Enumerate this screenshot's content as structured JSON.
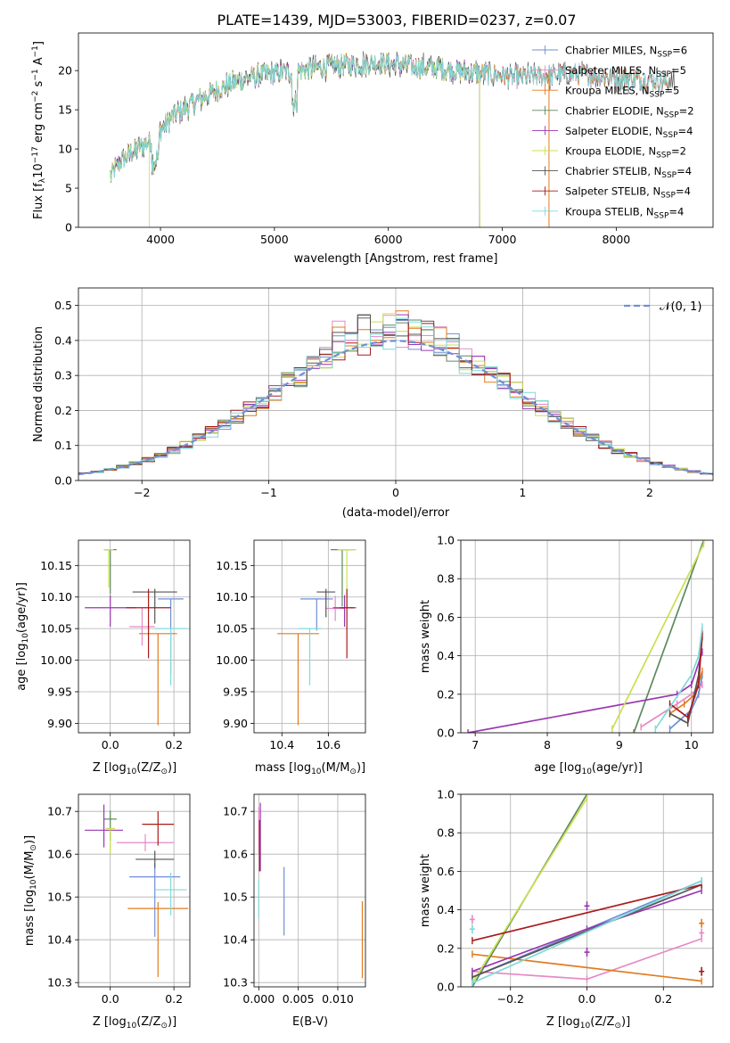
{
  "figure_title": "PLATE=1439, MJD=53003, FIBERID=0237, z=0.07",
  "colors": {
    "Chabrier MILES": "#6f8fd6",
    "Salpeter MILES": "#e58ac4",
    "Kroupa MILES": "#e07b1e",
    "Chabrier ELODIE": "#5c8a5c",
    "Salpeter ELODIE": "#9a36b0",
    "Kroupa ELODIE": "#c9e050",
    "Chabrier STELIB": "#555555",
    "Salpeter STELIB": "#aa1a1a",
    "Kroupa STELIB": "#7fdada"
  },
  "chart_data": [
    {
      "id": "spectrum",
      "type": "line",
      "xlabel": "wavelength [Angstrom, rest frame]",
      "ylabel": "Flux [f",
      "ylabel_sub": "λ",
      "ylabel_rest": "10",
      "ylabel_exp": "−17",
      "ylabel_tail": " erg cm",
      "ylabel_exp2": "−2",
      "ylabel_tail2": " s",
      "ylabel_exp3": "−1",
      "ylabel_tail3": " A",
      "ylabel_exp4": "−1",
      "ylabel_end": "]",
      "xlim": [
        3280,
        8850
      ],
      "ylim": [
        0,
        24.8
      ],
      "xticks": [
        4000,
        5000,
        6000,
        7000,
        8000
      ],
      "yticks": [
        0,
        5,
        10,
        15,
        20
      ],
      "legend": [
        {
          "label": "Chabrier MILES, N",
          "sub": "SSP",
          "tail": "=6"
        },
        {
          "label": "Salpeter MILES, N",
          "sub": "SSP",
          "tail": "=5"
        },
        {
          "label": "Kroupa MILES, N",
          "sub": "SSP",
          "tail": "=5"
        },
        {
          "label": "Chabrier ELODIE, N",
          "sub": "SSP",
          "tail": "=2"
        },
        {
          "label": "Salpeter ELODIE, N",
          "sub": "SSP",
          "tail": "=4"
        },
        {
          "label": "Kroupa ELODIE, N",
          "sub": "SSP",
          "tail": "=2"
        },
        {
          "label": "Chabrier STELIB, N",
          "sub": "SSP",
          "tail": "=4"
        },
        {
          "label": "Salpeter STELIB, N",
          "sub": "SSP",
          "tail": "=4"
        },
        {
          "label": "Kroupa STELIB, N",
          "sub": "SSP",
          "tail": "=4"
        }
      ],
      "continuum_anchors": {
        "x": [
          3560,
          3650,
          3800,
          3950,
          4100,
          4300,
          4500,
          4700,
          4900,
          5100,
          5300,
          5500,
          5700,
          5900,
          6100,
          6300,
          6500,
          6700,
          6900,
          7100,
          7300,
          7500,
          7700,
          7900,
          8100,
          8300,
          8500
        ],
        "y": [
          6.5,
          8.5,
          10.0,
          11.5,
          14.0,
          16.0,
          17.5,
          18.8,
          19.5,
          19.8,
          20.2,
          20.6,
          20.8,
          21.0,
          20.8,
          20.4,
          20.2,
          19.8,
          19.5,
          19.2,
          19.2,
          19.5,
          19.6,
          19.3,
          19.0,
          18.8,
          18.5
        ]
      }
    },
    {
      "id": "residuals",
      "type": "histogram",
      "xlabel": "(data-model)/error",
      "ylabel": "Normed distribution",
      "xlim": [
        -2.5,
        2.5
      ],
      "ylim": [
        0,
        0.55
      ],
      "xticks": [
        -2,
        -1,
        0,
        1,
        2
      ],
      "yticks": [
        0.0,
        0.1,
        0.2,
        0.3,
        0.4,
        0.5
      ],
      "legend": "𝒩(0, 1)"
    },
    {
      "id": "age-vs-metallicity",
      "type": "errorbar",
      "xlabel": "Z [log",
      "xlabel_sub": "10",
      "xlabel_mid": "(Z/Z",
      "xlabel_sub2": "⊙",
      "xlabel_end": ")]",
      "ylabel": "age  [log",
      "ylabel_sub": "10",
      "ylabel_end": "(age/yr)]",
      "xlim": [
        -0.1,
        0.25
      ],
      "ylim": [
        9.885,
        10.19
      ],
      "xticks": [
        0.0,
        0.2
      ],
      "yticks": [
        9.9,
        9.95,
        10.0,
        10.05,
        10.1,
        10.15
      ],
      "points": [
        {
          "x": 0.19,
          "y": 10.097,
          "xerr": 0.04,
          "yerr": [
            0.12,
            0.0
          ],
          "series": "Chabrier MILES"
        },
        {
          "x": 0.1,
          "y": 10.053,
          "xerr": 0.04,
          "yerr": [
            0.03,
            0.03
          ],
          "series": "Salpeter MILES"
        },
        {
          "x": 0.15,
          "y": 10.042,
          "xerr": 0.06,
          "yerr": [
            0.145,
            0.0
          ],
          "series": "Kroupa MILES"
        },
        {
          "x": 0.0,
          "y": 10.175,
          "xerr": 0.02,
          "yerr": [
            0.07,
            0.0
          ],
          "series": "Chabrier ELODIE"
        },
        {
          "x": 0.0,
          "y": 10.083,
          "xerr": 0.08,
          "yerr": [
            0.03,
            0.02
          ],
          "series": "Salpeter ELODIE"
        },
        {
          "x": -0.005,
          "y": 10.175,
          "xerr": 0.015,
          "yerr": [
            0.06,
            0.0
          ],
          "series": "Kroupa ELODIE"
        },
        {
          "x": 0.14,
          "y": 10.108,
          "xerr": 0.07,
          "yerr": [
            0.05,
            0.005
          ],
          "series": "Chabrier STELIB"
        },
        {
          "x": 0.12,
          "y": 10.083,
          "xerr": 0.07,
          "yerr": [
            0.08,
            0.03
          ],
          "series": "Salpeter STELIB"
        },
        {
          "x": 0.19,
          "y": 10.05,
          "xerr": 0.05,
          "yerr": [
            0.09,
            0.0
          ],
          "series": "Kroupa STELIB"
        }
      ]
    },
    {
      "id": "age-vs-mass",
      "type": "errorbar",
      "xlabel": "mass [log",
      "xlabel_sub": "10",
      "xlabel_end": "(M/M",
      "xlabel_sub2": "⊙",
      "xlabel_end2": ")]",
      "xlim": [
        10.28,
        10.76
      ],
      "ylim": [
        9.885,
        10.19
      ],
      "xticks": [
        10.4,
        10.6
      ],
      "yticks": [
        9.9,
        9.95,
        10.0,
        10.05,
        10.1,
        10.15
      ],
      "points": [
        {
          "x": 10.55,
          "y": 10.097,
          "xerr": 0.07,
          "yerr": [
            0.05,
            0.0
          ],
          "series": "Chabrier MILES"
        },
        {
          "x": 10.63,
          "y": 10.082,
          "xerr": 0.04,
          "yerr": [
            0.02,
            0.02
          ],
          "series": "Salpeter MILES"
        },
        {
          "x": 10.47,
          "y": 10.042,
          "xerr": 0.09,
          "yerr": [
            0.145,
            0.0
          ],
          "series": "Kroupa MILES"
        },
        {
          "x": 10.66,
          "y": 10.175,
          "xerr": 0.05,
          "yerr": [
            0.09,
            0.0
          ],
          "series": "Chabrier ELODIE"
        },
        {
          "x": 10.67,
          "y": 10.083,
          "xerr": 0.05,
          "yerr": [
            0.03,
            0.02
          ],
          "series": "Salpeter ELODIE"
        },
        {
          "x": 10.68,
          "y": 10.175,
          "xerr": 0.04,
          "yerr": [
            0.09,
            0.0
          ],
          "series": "Kroupa ELODIE"
        },
        {
          "x": 10.59,
          "y": 10.108,
          "xerr": 0.04,
          "yerr": [
            0.04,
            0.005
          ],
          "series": "Chabrier STELIB"
        },
        {
          "x": 10.68,
          "y": 10.083,
          "xerr": 0.03,
          "yerr": [
            0.08,
            0.03
          ],
          "series": "Salpeter STELIB"
        },
        {
          "x": 10.52,
          "y": 10.05,
          "xerr": 0.05,
          "yerr": [
            0.09,
            0.0
          ],
          "series": "Kroupa STELIB"
        }
      ]
    },
    {
      "id": "weight-vs-age",
      "type": "line",
      "xlabel": "age  [log",
      "xlabel_sub": "10",
      "xlabel_end": "(age/yr)]",
      "ylabel": "mass weight",
      "xlim": [
        6.8,
        10.3
      ],
      "ylim": [
        0,
        1
      ],
      "xticks": [
        7,
        8,
        9,
        10
      ],
      "yticks": [
        0.0,
        0.2,
        0.4,
        0.6,
        0.8,
        1.0
      ],
      "series": [
        {
          "name": "Chabrier MILES",
          "x": [
            9.7,
            10.0,
            10.1,
            10.15
          ],
          "y": [
            0.02,
            0.12,
            0.2,
            0.3
          ]
        },
        {
          "name": "Salpeter MILES",
          "x": [
            9.3,
            9.8,
            10.0,
            10.15
          ],
          "y": [
            0.03,
            0.15,
            0.2,
            0.25
          ]
        },
        {
          "name": "Kroupa MILES",
          "x": [
            9.7,
            9.9,
            10.05,
            10.15
          ],
          "y": [
            0.1,
            0.15,
            0.2,
            0.32
          ]
        },
        {
          "name": "Chabrier ELODIE",
          "x": [
            9.2,
            10.17
          ],
          "y": [
            0.0,
            1.0
          ]
        },
        {
          "name": "Salpeter ELODIE",
          "x": [
            6.9,
            9.8,
            10.0,
            10.15
          ],
          "y": [
            0.0,
            0.2,
            0.25,
            0.42
          ]
        },
        {
          "name": "Kroupa ELODIE",
          "x": [
            8.9,
            10.17
          ],
          "y": [
            0.02,
            0.98
          ]
        },
        {
          "name": "Chabrier STELIB",
          "x": [
            9.7,
            9.95,
            10.1,
            10.15
          ],
          "y": [
            0.1,
            0.05,
            0.3,
            0.5
          ]
        },
        {
          "name": "Salpeter STELIB",
          "x": [
            9.7,
            9.95,
            10.1,
            10.15
          ],
          "y": [
            0.15,
            0.08,
            0.25,
            0.52
          ]
        },
        {
          "name": "Kroupa STELIB",
          "x": [
            9.5,
            10.0,
            10.1,
            10.15
          ],
          "y": [
            0.02,
            0.3,
            0.4,
            0.55
          ]
        }
      ]
    },
    {
      "id": "mass-vs-metallicity",
      "type": "errorbar",
      "xlabel": "Z [log",
      "xlabel_sub": "10",
      "xlabel_mid": "(Z/Z",
      "xlabel_sub2": "⊙",
      "xlabel_end": ")]",
      "ylabel": "mass [log",
      "ylabel_sub": "10",
      "ylabel_end": "(M/M",
      "ylabel_sub2": "⊙",
      "ylabel_end2": ")]",
      "xlim": [
        -0.1,
        0.25
      ],
      "ylim": [
        10.29,
        10.74
      ],
      "xticks": [
        0.0,
        0.2
      ],
      "yticks": [
        10.3,
        10.4,
        10.5,
        10.6,
        10.7
      ],
      "points": [
        {
          "x": 0.14,
          "y": 10.547,
          "xerr": 0.08,
          "yerr": [
            0.14,
            0.03
          ],
          "series": "Chabrier MILES"
        },
        {
          "x": 0.11,
          "y": 10.627,
          "xerr": 0.09,
          "yerr": [
            0.02,
            0.02
          ],
          "series": "Salpeter MILES"
        },
        {
          "x": 0.15,
          "y": 10.473,
          "xerr": 0.095,
          "yerr": [
            0.16,
            0.015
          ],
          "series": "Kroupa MILES"
        },
        {
          "x": 0.0,
          "y": 10.682,
          "xerr": 0.02,
          "yerr": [
            0.05,
            0.02
          ],
          "series": "Chabrier ELODIE"
        },
        {
          "x": -0.02,
          "y": 10.656,
          "xerr": 0.06,
          "yerr": [
            0.04,
            0.06
          ],
          "series": "Salpeter ELODIE"
        },
        {
          "x": 0.0,
          "y": 10.66,
          "xerr": 0.015,
          "yerr": [
            0.06,
            0.0
          ],
          "series": "Kroupa ELODIE"
        },
        {
          "x": 0.14,
          "y": 10.588,
          "xerr": 0.06,
          "yerr": [
            0.02,
            0.02
          ],
          "series": "Chabrier STELIB"
        },
        {
          "x": 0.15,
          "y": 10.67,
          "xerr": 0.05,
          "yerr": [
            0.05,
            0.03
          ],
          "series": "Salpeter STELIB"
        },
        {
          "x": 0.19,
          "y": 10.517,
          "xerr": 0.05,
          "yerr": [
            0.06,
            0.04
          ],
          "series": "Kroupa STELIB"
        }
      ]
    },
    {
      "id": "mass-vs-extinction",
      "type": "errorbar",
      "xlabel": "E(B-V)",
      "xlim": [
        -0.0006,
        0.0135
      ],
      "ylim": [
        10.29,
        10.74
      ],
      "xticks": [
        0.0,
        0.005,
        0.01
      ],
      "xtick_labels": [
        "0.000",
        "0.005",
        "0.010"
      ],
      "yticks": [
        10.3,
        10.4,
        10.5,
        10.6,
        10.7
      ],
      "points": [
        {
          "x": 0.0032,
          "y": 10.49,
          "yerr": [
            0.08,
            0.08
          ],
          "series": "Chabrier MILES"
        },
        {
          "x": 0.0,
          "y": 10.65,
          "yerr": [
            0.05,
            0.06
          ],
          "series": "Salpeter MILES"
        },
        {
          "x": 0.0131,
          "y": 10.4,
          "yerr": [
            0.09,
            0.09
          ],
          "series": "Kroupa MILES"
        },
        {
          "x": 0.0002,
          "y": 10.64,
          "yerr": [
            0.08,
            0.08
          ],
          "series": "Salpeter ELODIE"
        },
        {
          "x": 0.0001,
          "y": 10.62,
          "yerr": [
            0.06,
            0.06
          ],
          "series": "Salpeter STELIB"
        },
        {
          "x": 0.0,
          "y": 10.49,
          "yerr": [
            0.04,
            0.05
          ],
          "series": "Kroupa STELIB"
        }
      ]
    },
    {
      "id": "weight-vs-metallicity",
      "type": "line",
      "xlabel": "Z [log",
      "xlabel_sub": "10",
      "xlabel_mid": "(Z/Z",
      "xlabel_sub2": "⊙",
      "xlabel_end": ")]",
      "ylabel": "mass weight",
      "xlim": [
        -0.33,
        0.33
      ],
      "ylim": [
        0,
        1
      ],
      "xticks": [
        -0.2,
        0.0,
        0.2
      ],
      "xtick_labels": [
        "−0.2",
        "0.0",
        "0.2"
      ],
      "yticks": [
        0.0,
        0.2,
        0.4,
        0.6,
        0.8,
        1.0
      ],
      "series": [
        {
          "name": "Chabrier MILES",
          "x": [
            -0.3,
            0.3
          ],
          "y": [
            0.05,
            0.55
          ]
        },
        {
          "name": "Salpeter MILES",
          "x": [
            -0.3,
            0.0,
            0.3
          ],
          "y": [
            0.08,
            0.04,
            0.25
          ]
        },
        {
          "name": "Kroupa MILES",
          "x": [
            -0.3,
            0.3
          ],
          "y": [
            0.17,
            0.03
          ]
        },
        {
          "name": "Chabrier ELODIE",
          "x": [
            -0.3,
            0.0
          ],
          "y": [
            0.0,
            1.0
          ]
        },
        {
          "name": "Salpeter ELODIE",
          "x": [
            -0.3,
            0.0,
            0.3
          ],
          "y": [
            0.08,
            0.3,
            0.5
          ]
        },
        {
          "name": "Kroupa ELODIE",
          "x": [
            -0.3,
            0.0
          ],
          "y": [
            0.02,
            0.98
          ]
        },
        {
          "name": "Chabrier STELIB",
          "x": [
            -0.3,
            0.3
          ],
          "y": [
            0.05,
            0.53
          ]
        },
        {
          "name": "Salpeter STELIB",
          "x": [
            -0.3,
            0.3
          ],
          "y": [
            0.24,
            0.53
          ]
        },
        {
          "name": "Kroupa STELIB",
          "x": [
            -0.3,
            0.3
          ],
          "y": [
            0.02,
            0.55
          ]
        }
      ],
      "markers": [
        {
          "x": -0.3,
          "y": 0.3,
          "series": "Kroupa STELIB"
        },
        {
          "x": -0.3,
          "y": 0.35,
          "series": "Salpeter MILES"
        },
        {
          "x": 0.0,
          "y": 0.42,
          "series": "Salpeter ELODIE"
        },
        {
          "x": 0.0,
          "y": 0.18,
          "series": "Salpeter ELODIE"
        },
        {
          "x": 0.3,
          "y": 0.33,
          "series": "Kroupa MILES"
        },
        {
          "x": 0.3,
          "y": 0.28,
          "series": "Salpeter MILES"
        },
        {
          "x": 0.3,
          "y": 0.08,
          "series": "Salpeter STELIB"
        }
      ]
    }
  ]
}
